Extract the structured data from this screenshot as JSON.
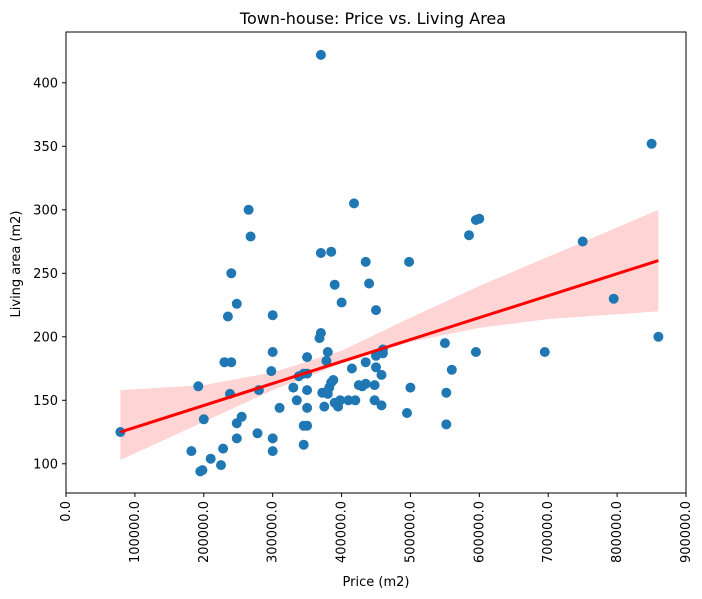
{
  "chart_data": {
    "type": "scatter",
    "title": "Town-house: Price vs. Living Area",
    "xlabel": "Price (m2)",
    "ylabel": "Living area (m2)",
    "xlim": [
      0,
      900000
    ],
    "ylim": [
      77,
      440
    ],
    "x_ticks": [
      "0.0",
      "100000.0",
      "200000.0",
      "300000.0",
      "400000.0",
      "500000.0",
      "600000.0",
      "700000.0",
      "800000.0",
      "900000.0"
    ],
    "y_ticks": [
      "100",
      "150",
      "200",
      "250",
      "300",
      "350",
      "400"
    ],
    "grid": false,
    "legend": "none",
    "point_color": "#1f77b4",
    "regression_color": "#ff0000",
    "ci_color": "#ffcccc",
    "regression_line": {
      "x": [
        79000,
        860000
      ],
      "y": [
        125,
        260
      ]
    },
    "confidence_band": {
      "x": [
        79000,
        200000,
        300000,
        400000,
        500000,
        600000,
        700000,
        860000
      ],
      "lower": [
        103,
        133,
        158,
        179,
        196,
        207,
        214,
        220
      ],
      "upper": [
        158,
        162,
        172,
        189,
        215,
        240,
        263,
        300
      ]
    },
    "points": [
      [
        79000,
        125
      ],
      [
        182000,
        110
      ],
      [
        192000,
        161
      ],
      [
        195000,
        94
      ],
      [
        198000,
        95
      ],
      [
        200000,
        135
      ],
      [
        210000,
        104
      ],
      [
        225000,
        99
      ],
      [
        228000,
        112
      ],
      [
        230000,
        180
      ],
      [
        235000,
        216
      ],
      [
        238000,
        155
      ],
      [
        240000,
        250
      ],
      [
        240000,
        180
      ],
      [
        248000,
        226
      ],
      [
        248000,
        132
      ],
      [
        248000,
        120
      ],
      [
        255000,
        137
      ],
      [
        265000,
        300
      ],
      [
        268000,
        279
      ],
      [
        278000,
        124
      ],
      [
        280000,
        158
      ],
      [
        298000,
        173
      ],
      [
        300000,
        217
      ],
      [
        300000,
        188
      ],
      [
        300000,
        110
      ],
      [
        300000,
        120
      ],
      [
        310000,
        144
      ],
      [
        330000,
        160
      ],
      [
        335000,
        150
      ],
      [
        338000,
        169
      ],
      [
        345000,
        171
      ],
      [
        345000,
        130
      ],
      [
        345000,
        115
      ],
      [
        350000,
        184
      ],
      [
        350000,
        171
      ],
      [
        350000,
        158
      ],
      [
        350000,
        144
      ],
      [
        350000,
        130
      ],
      [
        368000,
        199
      ],
      [
        370000,
        422
      ],
      [
        370000,
        266
      ],
      [
        370000,
        203
      ],
      [
        372000,
        156
      ],
      [
        375000,
        145
      ],
      [
        378000,
        181
      ],
      [
        380000,
        188
      ],
      [
        380000,
        155
      ],
      [
        382000,
        160
      ],
      [
        385000,
        267
      ],
      [
        385000,
        164
      ],
      [
        388000,
        166
      ],
      [
        390000,
        241
      ],
      [
        390000,
        148
      ],
      [
        395000,
        145
      ],
      [
        398000,
        150
      ],
      [
        400000,
        227
      ],
      [
        410000,
        150
      ],
      [
        415000,
        175
      ],
      [
        418000,
        305
      ],
      [
        420000,
        150
      ],
      [
        425000,
        162
      ],
      [
        430000,
        161
      ],
      [
        435000,
        259
      ],
      [
        435000,
        163
      ],
      [
        435000,
        180
      ],
      [
        440000,
        242
      ],
      [
        448000,
        162
      ],
      [
        448000,
        150
      ],
      [
        450000,
        221
      ],
      [
        450000,
        176
      ],
      [
        450000,
        185
      ],
      [
        458000,
        146
      ],
      [
        458000,
        170
      ],
      [
        460000,
        187
      ],
      [
        460000,
        190
      ],
      [
        495000,
        140
      ],
      [
        498000,
        259
      ],
      [
        500000,
        160
      ],
      [
        550000,
        195
      ],
      [
        552000,
        131
      ],
      [
        552000,
        156
      ],
      [
        560000,
        174
      ],
      [
        585000,
        280
      ],
      [
        595000,
        292
      ],
      [
        595000,
        188
      ],
      [
        600000,
        293
      ],
      [
        695000,
        188
      ],
      [
        750000,
        275
      ],
      [
        795000,
        230
      ],
      [
        850000,
        352
      ],
      [
        860000,
        200
      ]
    ]
  }
}
